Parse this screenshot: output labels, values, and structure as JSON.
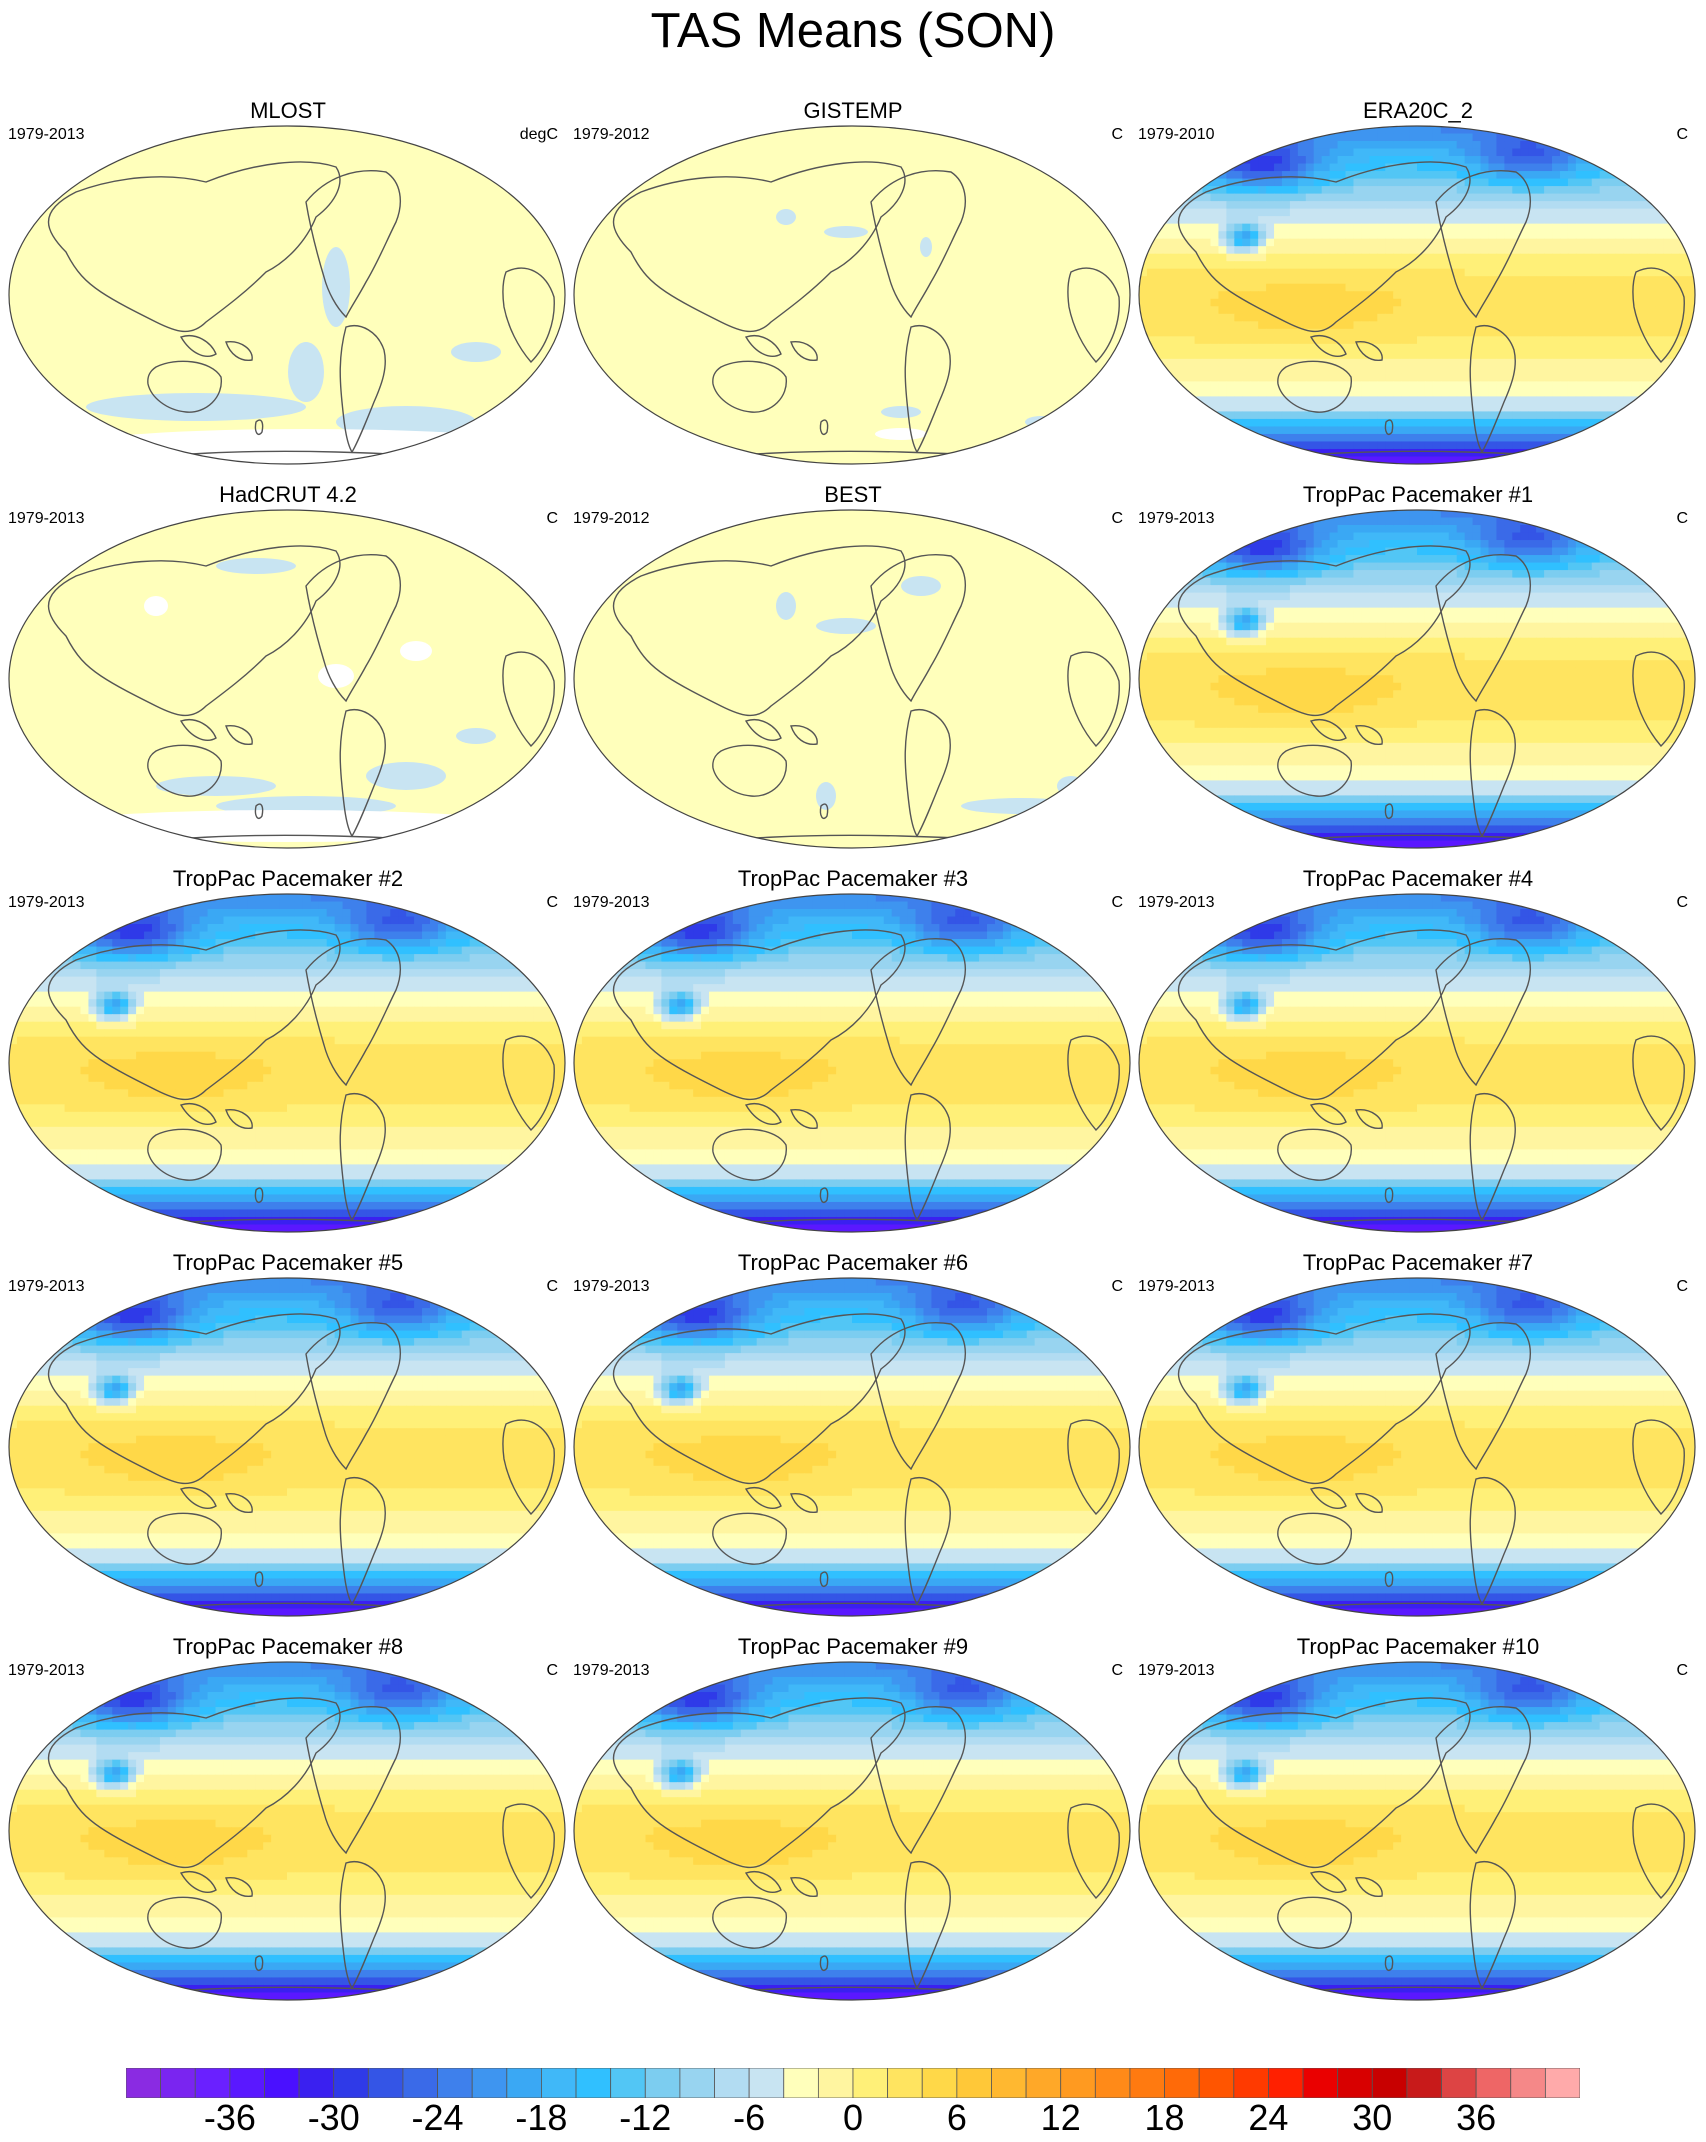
{
  "title": "TAS Means (SON)",
  "panels": [
    {
      "title": "MLOST",
      "years": "1979-2013",
      "units": "degC",
      "field": "obs-a"
    },
    {
      "title": "GISTEMP",
      "years": "1979-2012",
      "units": "C",
      "field": "obs-b"
    },
    {
      "title": "ERA20C_2",
      "years": "1979-2010",
      "units": "C",
      "field": "climatology"
    },
    {
      "title": "HadCRUT 4.2",
      "years": "1979-2013",
      "units": "C",
      "field": "obs-c"
    },
    {
      "title": "BEST",
      "years": "1979-2012",
      "units": "C",
      "field": "obs-d"
    },
    {
      "title": "TropPac Pacemaker #1",
      "years": "1979-2013",
      "units": "C",
      "field": "climatology"
    },
    {
      "title": "TropPac Pacemaker #2",
      "years": "1979-2013",
      "units": "C",
      "field": "climatology"
    },
    {
      "title": "TropPac Pacemaker #3",
      "years": "1979-2013",
      "units": "C",
      "field": "climatology"
    },
    {
      "title": "TropPac Pacemaker #4",
      "years": "1979-2013",
      "units": "C",
      "field": "climatology"
    },
    {
      "title": "TropPac Pacemaker #5",
      "years": "1979-2013",
      "units": "C",
      "field": "climatology"
    },
    {
      "title": "TropPac Pacemaker #6",
      "years": "1979-2013",
      "units": "C",
      "field": "climatology"
    },
    {
      "title": "TropPac Pacemaker #7",
      "years": "1979-2013",
      "units": "C",
      "field": "climatology"
    },
    {
      "title": "TropPac Pacemaker #8",
      "years": "1979-2013",
      "units": "C",
      "field": "climatology"
    },
    {
      "title": "TropPac Pacemaker #9",
      "years": "1979-2013",
      "units": "C",
      "field": "climatology"
    },
    {
      "title": "TropPac Pacemaker #10",
      "years": "1979-2013",
      "units": "C",
      "field": "climatology"
    }
  ],
  "colorbar": {
    "labels": [
      "-36",
      "-30",
      "-24",
      "-18",
      "-12",
      "-6",
      "0",
      "6",
      "12",
      "18",
      "24",
      "30",
      "36"
    ],
    "min": -42,
    "max": 42,
    "step": 3,
    "colors": [
      "#8a2be2",
      "#7a25f0",
      "#6a20ff",
      "#5a18ff",
      "#4a10ff",
      "#3a20f0",
      "#2f3ae8",
      "#3455e6",
      "#3a6ae8",
      "#3e80ec",
      "#3e95f0",
      "#3aa8f4",
      "#40b8f8",
      "#30c0ff",
      "#52c6f5",
      "#7ccdf0",
      "#98d4f0",
      "#b2dcf2",
      "#c8e4f2",
      "#ffffbb",
      "#fff5a0",
      "#fff078",
      "#ffe460",
      "#ffd848",
      "#ffc838",
      "#ffb830",
      "#ffa828",
      "#ff9a20",
      "#ff8a18",
      "#ff7a10",
      "#ff6a08",
      "#ff5500",
      "#ff3a00",
      "#ff2000",
      "#ea0000",
      "#d80000",
      "#c80000",
      "#c81a1a",
      "#dd4444",
      "#ee6666",
      "#f58888",
      "#ffaaaa"
    ]
  }
}
